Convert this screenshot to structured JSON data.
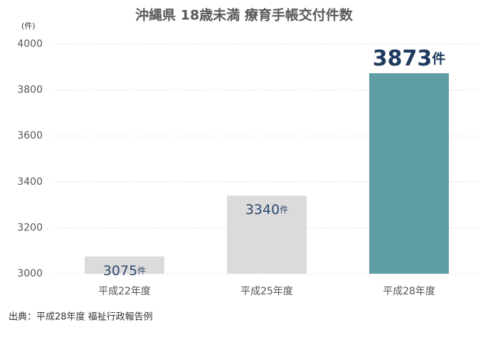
{
  "chart_data": {
    "type": "bar",
    "title": "沖縄県 18歳未満 療育手帳交付件数",
    "y_label": "(件)",
    "categories": [
      "平成22年度",
      "平成25年度",
      "平成28年度"
    ],
    "values": [
      3075,
      3340,
      3873
    ],
    "value_unit": "件",
    "colors": [
      "#dcdadb",
      "#dcdadb",
      "#5f9ea4"
    ],
    "ylim": [
      3000,
      4000
    ],
    "yticks": [
      3000,
      3200,
      3400,
      3600,
      3800,
      4000
    ],
    "grid": true,
    "source": "出典：平成28年度 福祉行政報告例"
  }
}
